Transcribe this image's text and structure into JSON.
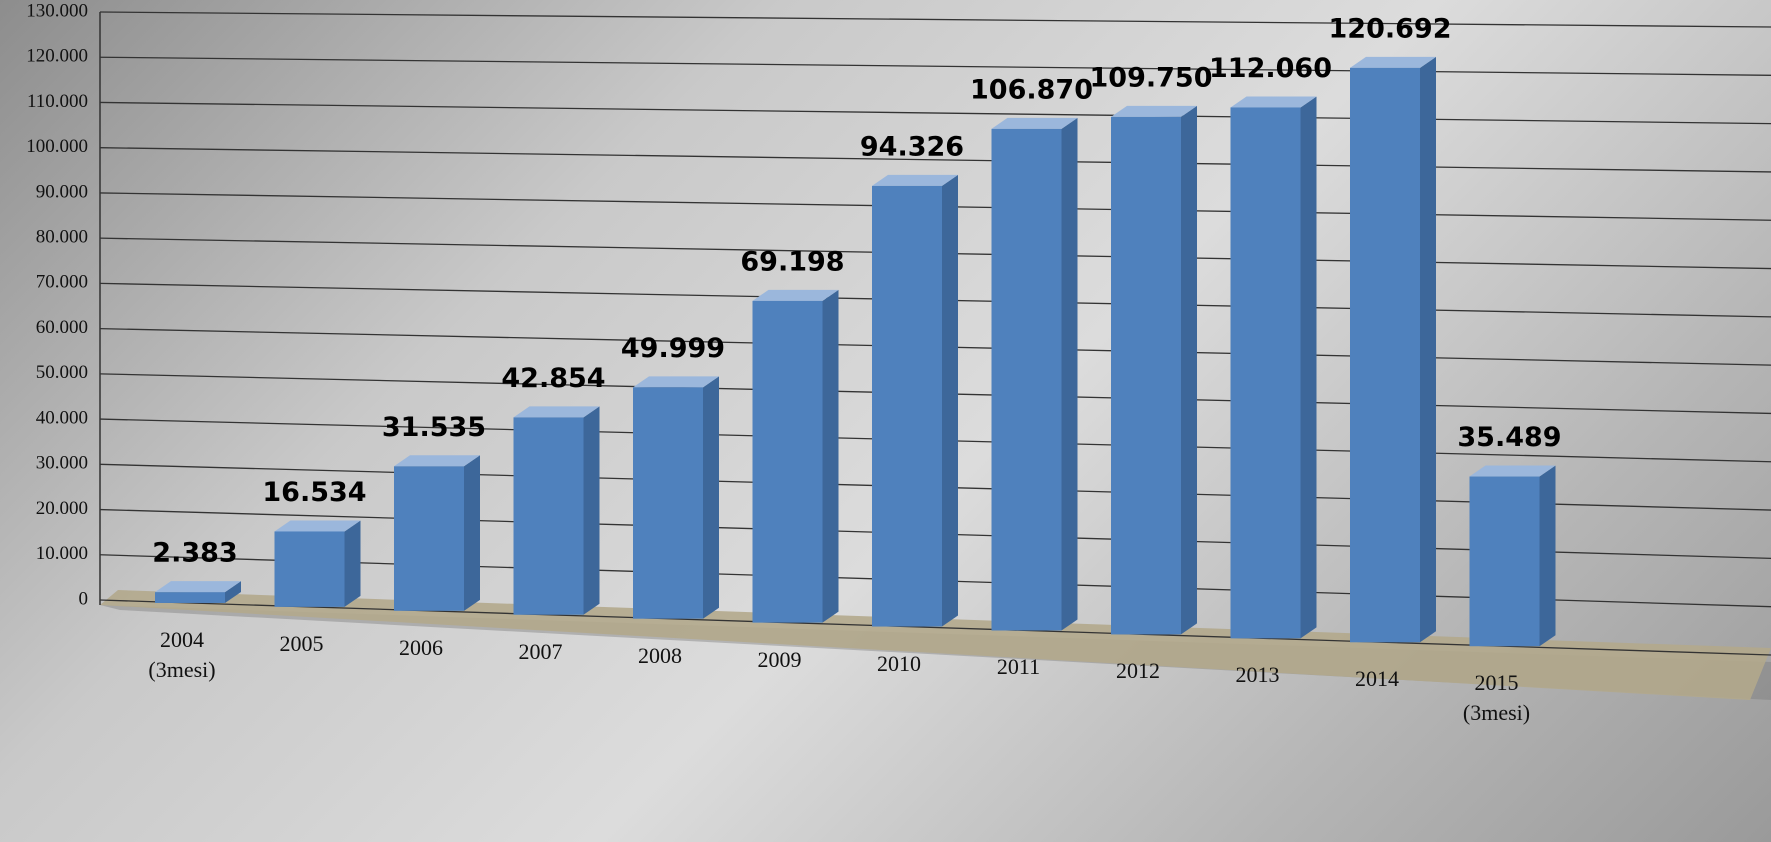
{
  "chart_data": {
    "type": "bar3d",
    "categories": [
      "2004 (3mesi)",
      "2005",
      "2006",
      "2007",
      "2008",
      "2009",
      "2010",
      "2011",
      "2012",
      "2013",
      "2014",
      "2015 (3mesi)"
    ],
    "values": [
      2383,
      16534,
      31535,
      42854,
      49999,
      69198,
      94326,
      106870,
      109750,
      112060,
      120692,
      35489
    ],
    "value_labels": [
      "2.383",
      "16.534",
      "31.535",
      "42.854",
      "49.999",
      "69.198",
      "94.326",
      "106.870",
      "109.750",
      "112.060",
      "120.692",
      "35.489"
    ],
    "color": "#4f81bd",
    "ylim": [
      0,
      130000
    ],
    "yticks": [
      0,
      {
        "value": 10000,
        "label": "10.000"
      },
      {
        "value": 20000,
        "label": "20.000"
      },
      {
        "value": 30000,
        "label": "30.000"
      },
      {
        "value": 40000,
        "label": "40.000"
      },
      {
        "value": 50000,
        "label": "50.000"
      },
      {
        "value": 60000,
        "label": "60.000"
      },
      {
        "value": 70000,
        "label": "70.000"
      },
      {
        "value": 80000,
        "label": "80.000"
      },
      {
        "value": 90000,
        "label": "90.000"
      },
      {
        "value": 100000,
        "label": "100.000"
      },
      {
        "value": 110000,
        "label": "110.000"
      },
      {
        "value": 120000,
        "label": "120.000"
      },
      {
        "value": 130000,
        "label": "130.000"
      }
    ],
    "grid": true
  }
}
